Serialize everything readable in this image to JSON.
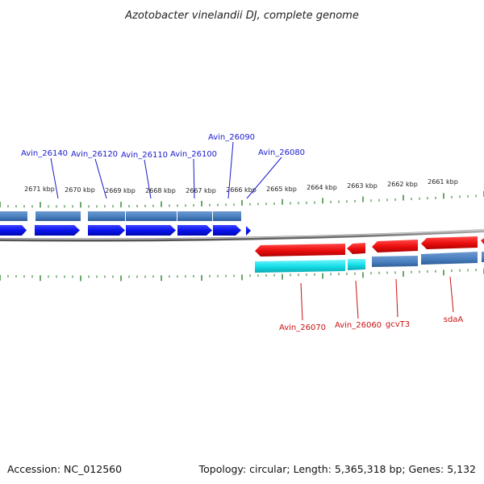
{
  "title": "Azotobacter vinelandii DJ, complete genome",
  "footer": {
    "accession": "Accession: NC_012560",
    "summary": "Topology: circular; Length: 5,365,318 bp; Genes: 5,132"
  },
  "colors": {
    "forward_gene": "#0a14ee",
    "reverse_gene": "#ee1010",
    "cds_forward": "#4a7fbf",
    "cds_reverse_highlight": "#17e0ea",
    "ticks": "#1a7a1a",
    "backbone": "#8a8a8a",
    "label_forward": "#1a1acc",
    "label_reverse": "#cc1111"
  },
  "scale_labels": [
    "2671 kbp",
    "2670 kbp",
    "2669 kbp",
    "2668 kbp",
    "2667 kbp",
    "2666 kbp",
    "2665 kbp",
    "2664 kbp",
    "2663 kbp",
    "2662 kbp",
    "2661 kbp"
  ],
  "forward_genes": [
    {
      "name": "Avin_26140"
    },
    {
      "name": "Avin_26120"
    },
    {
      "name": "Avin_26110"
    },
    {
      "name": "Avin_26100"
    },
    {
      "name": "Avin_26090"
    },
    {
      "name": "Avin_26080"
    }
  ],
  "reverse_genes": [
    {
      "name": "Avin_26070"
    },
    {
      "name": "Avin_26060"
    },
    {
      "name": "gcvT3"
    },
    {
      "name": "sdaA"
    }
  ]
}
